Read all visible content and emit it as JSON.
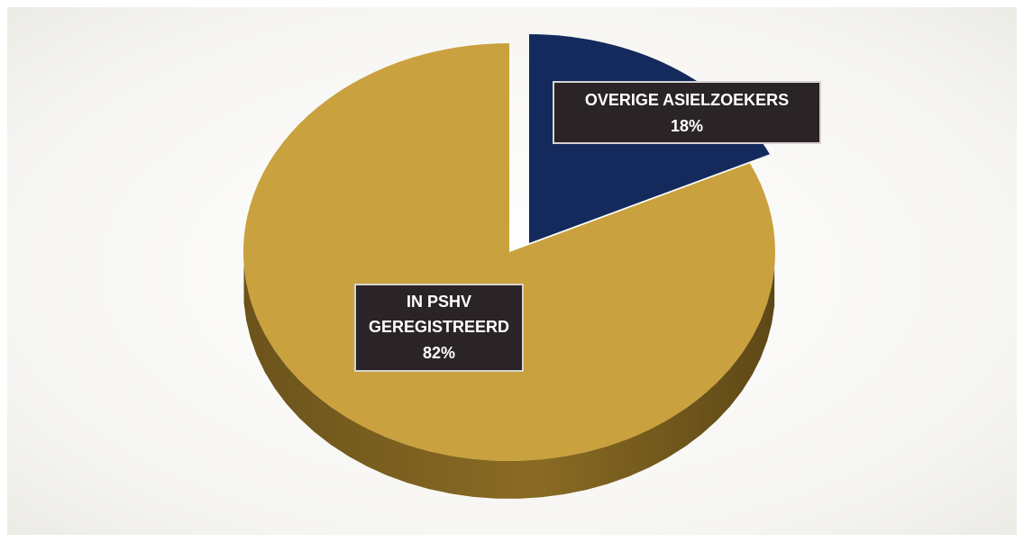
{
  "chart_data": {
    "type": "pie",
    "style": "3d-exploded",
    "slices": [
      {
        "label_lines": [
          "IN PSHV",
          "GEREGISTREERD"
        ],
        "value_label": "82%",
        "value": 82,
        "color": "#c9a13e",
        "side_color": "#7e6220"
      },
      {
        "label_lines": [
          "OVERIGE ASIELZOEKERS"
        ],
        "value_label": "18%",
        "value": 18,
        "color": "#142a5c",
        "side_color": "#0b1633"
      }
    ],
    "title": "",
    "legend": "none"
  }
}
